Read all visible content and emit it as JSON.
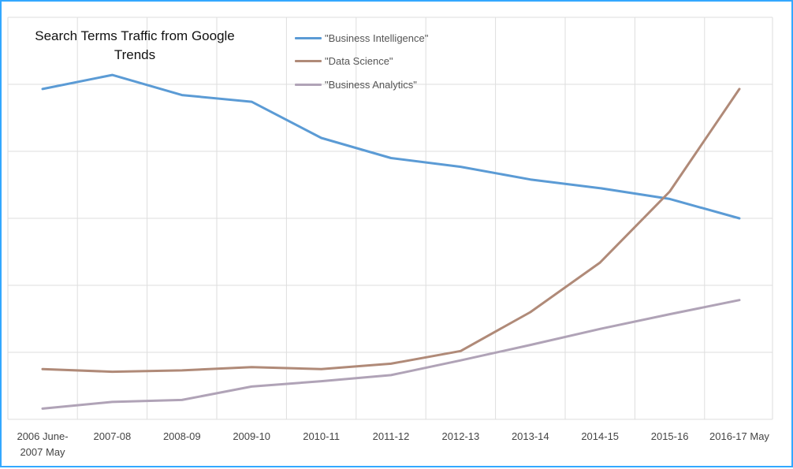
{
  "chart_data": {
    "type": "line",
    "title": "Search Terms Traffic from Google Trends",
    "xlabel": "",
    "ylabel": "",
    "categories": [
      [
        "2006 June-",
        "2007 May"
      ],
      [
        "2007-08"
      ],
      [
        "2008-09"
      ],
      [
        "2009-10"
      ],
      [
        "2010-11"
      ],
      [
        "2011-12"
      ],
      [
        "2012-13"
      ],
      [
        "2013-14"
      ],
      [
        "2014-15"
      ],
      [
        "2015-16"
      ],
      [
        "2016-17 May"
      ]
    ],
    "ylim": [
      0,
      6
    ],
    "y_ticks_labeled": false,
    "grid": true,
    "legend_position": "top-center",
    "series": [
      {
        "name": "\"Business Intelligence\"",
        "color": "#5b9bd5",
        "values": [
          4.93,
          5.14,
          4.84,
          4.74,
          4.2,
          3.9,
          3.77,
          3.58,
          3.45,
          3.29,
          3.0
        ]
      },
      {
        "name": "\"Data Science\"",
        "color": "#b08a78",
        "values": [
          0.75,
          0.71,
          0.73,
          0.78,
          0.75,
          0.83,
          1.02,
          1.6,
          2.34,
          3.4,
          4.93
        ]
      },
      {
        "name": "\"Business Analytics\"",
        "color": "#b0a3b7",
        "values": [
          0.16,
          0.26,
          0.29,
          0.49,
          0.57,
          0.66,
          0.88,
          1.11,
          1.35,
          1.57,
          1.78
        ]
      }
    ]
  }
}
